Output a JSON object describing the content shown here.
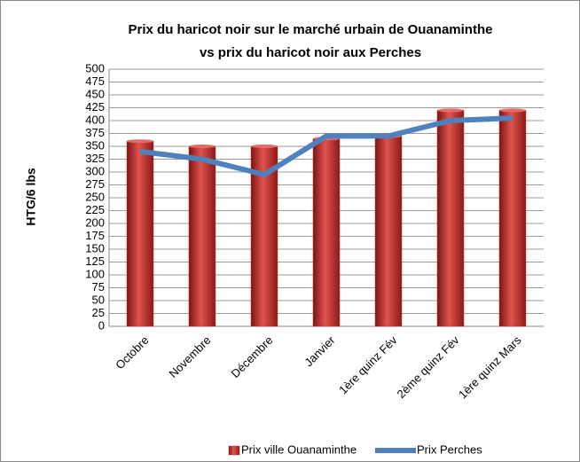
{
  "chart_data": {
    "type": "bar",
    "title": [
      "Prix du haricot noir sur le marché urbain de Ouanaminthe",
      "vs prix du haricot noir aux Perches"
    ],
    "y_label": "HTG/6 lbs",
    "categories": [
      "Octobre",
      "Novembre",
      "Décembre",
      "Janvier",
      "1ère quinz Fév",
      "2ème quinz Fév",
      "1ère quinz Mars"
    ],
    "series": [
      {
        "name": "Prix ville Ouanaminthe",
        "type": "bar",
        "color": "#c0302c",
        "values": [
          360,
          350,
          350,
          365,
          370,
          420,
          420
        ]
      },
      {
        "name": "Prix Perches",
        "type": "line",
        "color": "#4f81bd",
        "values": [
          340,
          325,
          295,
          370,
          370,
          400,
          405
        ]
      }
    ],
    "ylim": [
      0,
      500
    ],
    "yticks": [
      0,
      25,
      50,
      75,
      100,
      125,
      150,
      175,
      200,
      225,
      250,
      275,
      300,
      325,
      350,
      375,
      400,
      425,
      450,
      475,
      500
    ],
    "grid": true,
    "legend": "bottom"
  }
}
